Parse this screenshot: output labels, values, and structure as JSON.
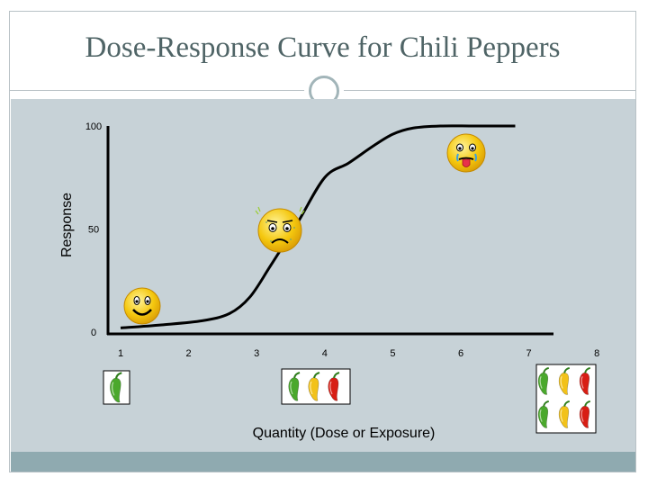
{
  "slide": {
    "title": "Dose-Response Curve for Chili Peppers"
  },
  "chart_data": {
    "type": "line",
    "title": "Dose-Response Curve for Chili Peppers",
    "xlabel": "Quantity (Dose or Exposure)",
    "ylabel": "Response",
    "x_ticks": [
      "1",
      "2",
      "3",
      "4",
      "5",
      "6",
      "7",
      "8"
    ],
    "y_ticks": [
      "0",
      "50",
      "100"
    ],
    "xlim": [
      0.3,
      8
    ],
    "ylim": [
      0,
      100
    ],
    "grid": false,
    "series": [
      {
        "x": [
          1.0,
          1.6,
          2.2,
          2.6,
          2.9,
          3.2,
          3.6,
          4.0,
          4.35,
          4.7,
          5.0,
          5.3,
          5.7,
          6.2,
          6.8
        ],
        "y": [
          2,
          3.5,
          5.5,
          9,
          17,
          32,
          53,
          75,
          82,
          90,
          96,
          99,
          100,
          100,
          100
        ],
        "color": "#000000"
      }
    ],
    "annotations": [
      {
        "kind": "happy-face-icon",
        "x": 1.2,
        "y": 10
      },
      {
        "kind": "sick-face-icon",
        "x": 3.0,
        "y": 50
      },
      {
        "kind": "burning-tongue-face-icon",
        "x": 5.8,
        "y": 91
      },
      {
        "kind": "chili-peppers-1",
        "x": 1.0,
        "count": 1
      },
      {
        "kind": "chili-peppers-3",
        "x": 3.5,
        "count": 3
      },
      {
        "kind": "chili-peppers-6",
        "x": 7.3,
        "count": 6
      }
    ],
    "colors": {
      "green_pepper": "#4aa82c",
      "yellow_pepper": "#f2c21a",
      "red_pepper": "#d81e14",
      "face_yellow": "#f4c70e"
    }
  }
}
